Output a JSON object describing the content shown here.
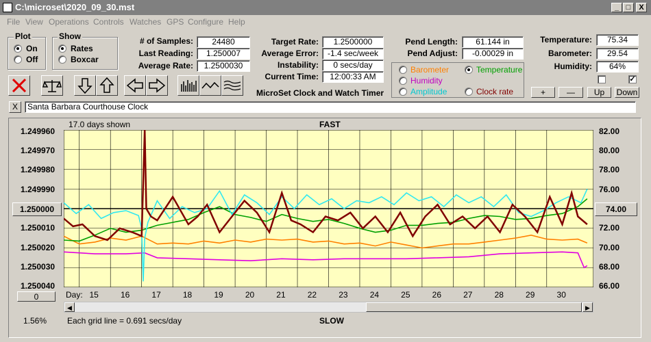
{
  "window": {
    "title": "C:\\microset\\2020_09_30.mst",
    "min": "_",
    "max": "□",
    "close": "X"
  },
  "menu": [
    "File",
    "View",
    "Operations",
    "Controls",
    "Watches",
    "GPS",
    "Configure",
    "Help"
  ],
  "plot_group": {
    "title": "Plot",
    "options": [
      "On",
      "Off"
    ],
    "selected": "On"
  },
  "show_group": {
    "title": "Show",
    "options": [
      "Rates",
      "Boxcar"
    ],
    "selected": "Rates"
  },
  "stats": {
    "samples_label": "# of Samples:",
    "samples": "24480",
    "last_label": "Last Reading:",
    "last": "1.250007",
    "avg_label": "Average Rate:",
    "avg": "1.2500030",
    "target_label": "Target Rate:",
    "target": "1.2500000",
    "avgerr_label": "Average Error:",
    "avgerr": "-1.4 sec/week",
    "instab_label": "Instability:",
    "instab": "0 secs/day",
    "time_label": "Current Time:",
    "time": "12:00:33 AM",
    "pendlen_label": "Pend Length:",
    "pendlen": "61.144 in",
    "pendadj_label": "Pend Adjust:",
    "pendadj": "-0.00029 in",
    "temp_label": "Temperature:",
    "temp": "75.34",
    "baro_label": "Barometer:",
    "baro": "29.54",
    "hum_label": "Humidity:",
    "hum": "64%"
  },
  "app_name": "MicroSet Clock and Watch Timer",
  "sensor_group": {
    "items": [
      {
        "label": "Barometer",
        "color": "#ff8000",
        "selected": false
      },
      {
        "label": "Temperature",
        "color": "#00a000",
        "selected": true
      },
      {
        "label": "Humidity",
        "color": "#c000c0",
        "selected": false
      },
      {
        "label": "Amplitude",
        "color": "#00c8d0",
        "selected": false
      },
      {
        "label": "Clock rate",
        "color": "#800000",
        "selected": false
      }
    ]
  },
  "right_buttons": [
    "+",
    "—",
    "Up",
    "Down"
  ],
  "checks": [
    false,
    true
  ],
  "clock_name_close": "X",
  "clock_name": "Santa Barbara Courthouse Clock",
  "chart_data": {
    "type": "line",
    "title": "FAST",
    "bottom_title": "SLOW",
    "days_shown": "17.0 days shown",
    "grid_note": "Each grid line = 0.691 secs/day",
    "percent": "1.56%",
    "center_left": "1.250000",
    "center_right": "74.00",
    "zero_button": "0",
    "xlabel": "Day:",
    "x_ticks": [
      "15",
      "16",
      "17",
      "18",
      "19",
      "20",
      "21",
      "22",
      "23",
      "24",
      "25",
      "26",
      "27",
      "28",
      "29",
      "30"
    ],
    "left_axis": [
      "1.249960",
      "1.249970",
      "1.249980",
      "1.249990",
      "1.250010",
      "1.250020",
      "1.250030",
      "1.250040"
    ],
    "right_axis": [
      "82.00",
      "80.00",
      "78.00",
      "76.00",
      "72.00",
      "70.00",
      "68.00",
      "66.00"
    ],
    "y_left_range": [
      1.24996,
      1.25004
    ],
    "y_right_range": [
      66,
      82
    ],
    "x_range": [
      14.0,
      31.0
    ],
    "grid": true,
    "background": "#ffffc0",
    "series": [
      {
        "name": "Humidity",
        "color": "#e000e0",
        "x": [
          14.0,
          15.0,
          16.0,
          16.6,
          17.0,
          18.0,
          19.0,
          20.0,
          21.0,
          22.0,
          23.0,
          24.0,
          25.0,
          26.0,
          27.0,
          28.0,
          29.0,
          30.0,
          30.5,
          30.7,
          30.8
        ],
        "y": [
          69.6,
          69.4,
          69.4,
          69.5,
          69.0,
          68.9,
          68.8,
          68.7,
          68.9,
          68.8,
          68.9,
          68.9,
          68.9,
          69.0,
          69.1,
          69.4,
          69.5,
          69.6,
          69.5,
          68.0,
          68.2
        ]
      },
      {
        "name": "Barometer",
        "color": "#ff8000",
        "x": [
          14.0,
          14.5,
          15.0,
          15.5,
          16.0,
          16.5,
          17.0,
          17.5,
          18.0,
          18.5,
          19.0,
          19.5,
          20.0,
          20.5,
          21.0,
          21.5,
          22.0,
          22.5,
          23.0,
          23.5,
          24.0,
          24.5,
          25.0,
          25.5,
          26.0,
          26.5,
          27.0,
          27.5,
          28.0,
          28.5,
          29.0,
          29.5,
          30.0,
          30.5,
          30.8
        ],
        "y": [
          71.2,
          70.4,
          70.6,
          71.0,
          70.8,
          71.2,
          70.4,
          70.5,
          70.4,
          70.7,
          70.5,
          70.8,
          70.6,
          70.9,
          70.8,
          70.9,
          70.6,
          70.7,
          70.4,
          70.5,
          70.2,
          70.6,
          70.3,
          70.0,
          70.2,
          70.4,
          70.4,
          70.6,
          70.8,
          71.0,
          71.3,
          70.9,
          70.8,
          70.9,
          70.5
        ]
      },
      {
        "name": "Temperature",
        "color": "#00a000",
        "x": [
          14.0,
          14.5,
          15.0,
          15.5,
          16.0,
          16.5,
          17.0,
          17.5,
          18.0,
          18.5,
          19.0,
          19.5,
          20.0,
          20.5,
          21.0,
          21.5,
          22.0,
          22.5,
          23.0,
          23.5,
          24.0,
          24.5,
          25.0,
          25.5,
          26.0,
          26.5,
          27.0,
          27.5,
          28.0,
          28.5,
          29.0,
          29.5,
          30.0,
          30.5,
          30.8
        ],
        "y": [
          70.8,
          70.7,
          71.3,
          72.0,
          71.6,
          71.8,
          72.3,
          72.6,
          72.9,
          73.6,
          74.2,
          73.4,
          73.1,
          72.7,
          73.4,
          73.0,
          72.7,
          72.9,
          72.5,
          72.0,
          71.6,
          71.8,
          72.3,
          72.3,
          72.5,
          72.6,
          73.0,
          73.3,
          73.2,
          72.9,
          73.0,
          73.3,
          73.5,
          74.2,
          75.0
        ]
      },
      {
        "name": "Amplitude",
        "color": "#30e8f0",
        "x": [
          14.0,
          14.4,
          14.8,
          15.2,
          15.6,
          16.0,
          16.4,
          16.5,
          16.55,
          16.6,
          16.7,
          17.0,
          17.4,
          17.8,
          18.2,
          18.6,
          19.0,
          19.4,
          19.8,
          20.2,
          20.6,
          21.0,
          21.4,
          21.8,
          22.2,
          22.6,
          23.0,
          23.4,
          23.8,
          24.2,
          24.6,
          25.0,
          25.4,
          25.8,
          26.2,
          26.6,
          27.0,
          27.4,
          27.8,
          28.2,
          28.6,
          29.0,
          29.4,
          29.8,
          30.2,
          30.6,
          30.8
        ],
        "y": [
          74.6,
          73.5,
          74.4,
          73.0,
          73.6,
          73.8,
          73.3,
          72.0,
          66.6,
          71.0,
          72.6,
          74.8,
          73.0,
          74.2,
          73.6,
          74.0,
          75.8,
          73.4,
          75.4,
          74.6,
          73.4,
          75.2,
          74.0,
          75.4,
          74.4,
          75.0,
          74.0,
          74.8,
          74.6,
          75.2,
          74.4,
          75.6,
          74.8,
          75.2,
          74.2,
          75.4,
          74.6,
          75.2,
          74.2,
          75.4,
          73.6,
          73.2,
          73.8,
          74.6,
          75.2,
          74.6,
          76.0
        ]
      },
      {
        "name": "Clock rate",
        "color": "#800000",
        "x": [
          14.0,
          14.3,
          14.6,
          15.0,
          15.4,
          15.8,
          16.2,
          16.5,
          16.6,
          16.65,
          16.8,
          17.0,
          17.5,
          18.0,
          18.3,
          18.6,
          19.0,
          19.4,
          19.8,
          20.2,
          20.6,
          21.0,
          21.3,
          21.6,
          22.0,
          22.4,
          22.8,
          23.2,
          23.6,
          24.0,
          24.4,
          24.8,
          25.2,
          25.6,
          26.0,
          26.4,
          26.8,
          27.2,
          27.6,
          28.0,
          28.4,
          28.8,
          29.2,
          29.6,
          30.0,
          30.3,
          30.5,
          30.8
        ],
        "y": [
          1.250005,
          1.250009,
          1.250008,
          1.250014,
          1.250016,
          1.25001,
          1.250012,
          1.250014,
          1.24996,
          1.25,
          1.250004,
          1.250006,
          1.249994,
          1.250008,
          1.250004,
          1.249998,
          1.250012,
          1.250004,
          1.249996,
          1.250002,
          1.250012,
          1.249992,
          1.250006,
          1.250008,
          1.250012,
          1.250004,
          1.250006,
          1.250002,
          1.25001,
          1.250004,
          1.250012,
          1.250002,
          1.250014,
          1.250004,
          1.249998,
          1.250008,
          1.250004,
          1.25001,
          1.250004,
          1.250012,
          1.249998,
          1.250004,
          1.250012,
          1.249994,
          1.250008,
          1.249992,
          1.250004,
          1.250008
        ]
      }
    ]
  }
}
